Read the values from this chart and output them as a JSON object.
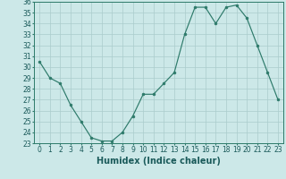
{
  "x": [
    0,
    1,
    2,
    3,
    4,
    5,
    6,
    7,
    8,
    9,
    10,
    11,
    12,
    13,
    14,
    15,
    16,
    17,
    18,
    19,
    20,
    21,
    22,
    23
  ],
  "y": [
    30.5,
    29.0,
    28.5,
    26.5,
    25.0,
    23.5,
    23.2,
    23.2,
    24.0,
    25.5,
    27.5,
    27.5,
    28.5,
    29.5,
    33.0,
    35.5,
    35.5,
    34.0,
    35.5,
    35.7,
    34.5,
    32.0,
    29.5,
    27.0
  ],
  "xlabel": "Humidex (Indice chaleur)",
  "xlim": [
    -0.5,
    23.5
  ],
  "ylim": [
    23,
    36
  ],
  "yticks": [
    23,
    24,
    25,
    26,
    27,
    28,
    29,
    30,
    31,
    32,
    33,
    34,
    35,
    36
  ],
  "xticks": [
    0,
    1,
    2,
    3,
    4,
    5,
    6,
    7,
    8,
    9,
    10,
    11,
    12,
    13,
    14,
    15,
    16,
    17,
    18,
    19,
    20,
    21,
    22,
    23
  ],
  "line_color": "#2d7a6a",
  "bg_color": "#cce8e8",
  "grid_color": "#aacccc",
  "tick_fontsize": 5.5,
  "label_fontsize": 7
}
